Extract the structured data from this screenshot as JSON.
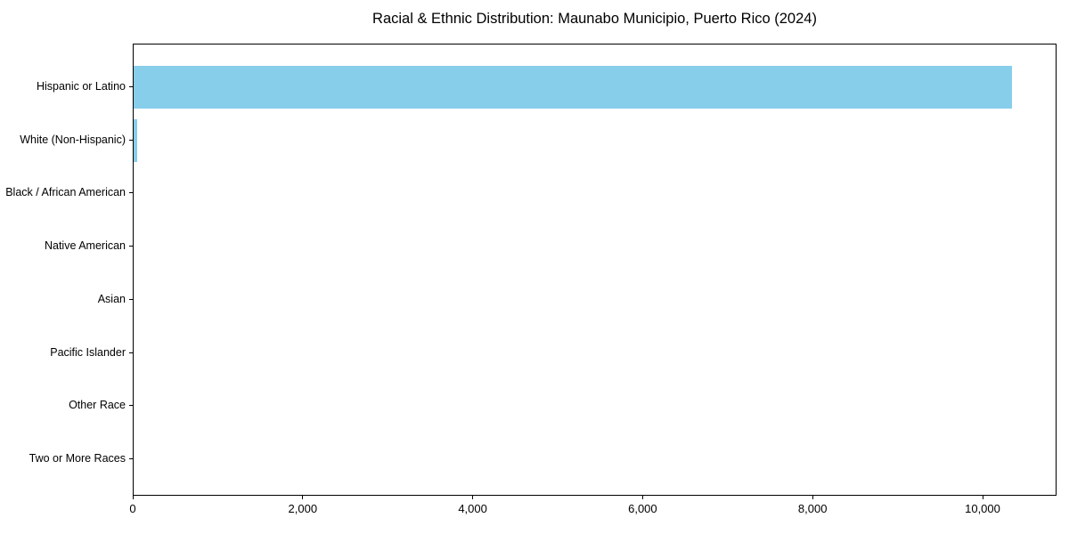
{
  "chart_data": {
    "type": "bar",
    "orientation": "horizontal",
    "title": "Racial & Ethnic Distribution: Maunabo Municipio, Puerto Rico (2024)",
    "categories": [
      "Hispanic or Latino",
      "White (Non-Hispanic)",
      "Black / African American",
      "Native American",
      "Asian",
      "Pacific Islander",
      "Other Race",
      "Two or More Races"
    ],
    "values": [
      10340,
      45,
      0,
      0,
      0,
      0,
      0,
      0
    ],
    "xlabel": "",
    "ylabel": "",
    "xlim": [
      0,
      10870
    ],
    "xticks": [
      0,
      2000,
      4000,
      6000,
      8000,
      10000
    ],
    "xtick_labels": [
      "0",
      "2,000",
      "4,000",
      "6,000",
      "8,000",
      "10,000"
    ],
    "bar_color": "#87CEEB",
    "background_color": "#ffffff",
    "spine_color": "#000000",
    "grid": false,
    "legend": false
  }
}
